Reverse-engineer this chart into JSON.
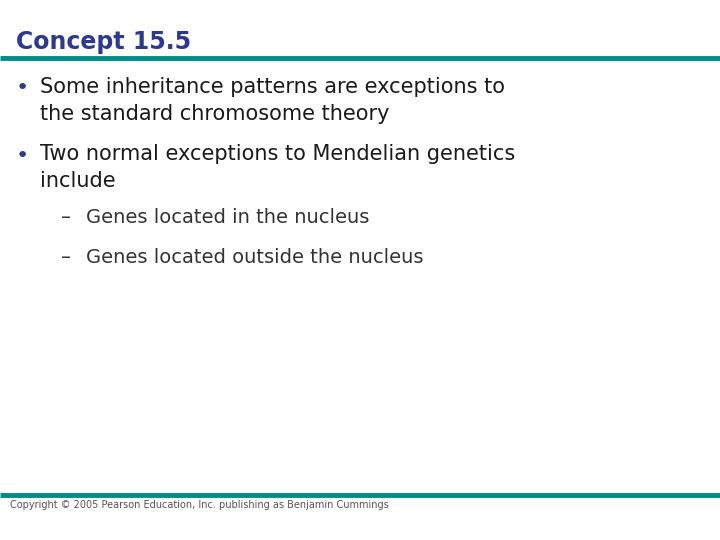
{
  "title": "Concept 15.5",
  "title_color": "#2B3990",
  "teal_line_color": "#008B8B",
  "background_color": "#FFFFFF",
  "bullet_color": "#2B3990",
  "body_text_color": "#1a1a1a",
  "sub_text_color": "#333333",
  "copyright_text": "Copyright © 2005 Pearson Education, Inc. publishing as Benjamin Cummings",
  "bullet1_line1": "Some inheritance patterns are exceptions to",
  "bullet1_line2": "the standard chromosome theory",
  "bullet2_line1": "Two normal exceptions to Mendelian genetics",
  "bullet2_line2": "include",
  "sub1": "Genes located in the nucleus",
  "sub2": "Genes located outside the nucleus",
  "title_fontsize": 17,
  "body_fontsize": 15,
  "sub_fontsize": 14,
  "copyright_fontsize": 7
}
